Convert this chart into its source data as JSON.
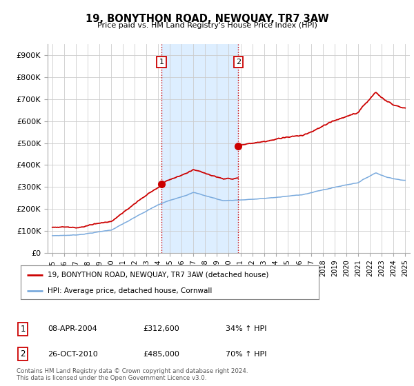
{
  "title": "19, BONYTHON ROAD, NEWQUAY, TR7 3AW",
  "subtitle": "Price paid vs. HM Land Registry's House Price Index (HPI)",
  "ylim": [
    0,
    950000
  ],
  "yticks": [
    0,
    100000,
    200000,
    300000,
    400000,
    500000,
    600000,
    700000,
    800000,
    900000
  ],
  "ytick_labels": [
    "£0",
    "£100K",
    "£200K",
    "£300K",
    "£400K",
    "£500K",
    "£600K",
    "£700K",
    "£800K",
    "£900K"
  ],
  "sale1_date": 2004.27,
  "sale1_price": 312600,
  "sale1_label": "1",
  "sale2_date": 2010.82,
  "sale2_price": 485000,
  "sale2_label": "2",
  "hpi_color": "#7aaadd",
  "price_color": "#cc0000",
  "vline_color": "#cc0000",
  "shade_color": "#ddeeff",
  "legend_label_price": "19, BONYTHON ROAD, NEWQUAY, TR7 3AW (detached house)",
  "legend_label_hpi": "HPI: Average price, detached house, Cornwall",
  "table_entries": [
    {
      "num": "1",
      "date": "08-APR-2004",
      "price": "£312,600",
      "info": "34% ↑ HPI"
    },
    {
      "num": "2",
      "date": "26-OCT-2010",
      "price": "£485,000",
      "info": "70% ↑ HPI"
    }
  ],
  "footnote": "Contains HM Land Registry data © Crown copyright and database right 2024.\nThis data is licensed under the Open Government Licence v3.0.",
  "background_color": "#ffffff",
  "grid_color": "#cccccc"
}
